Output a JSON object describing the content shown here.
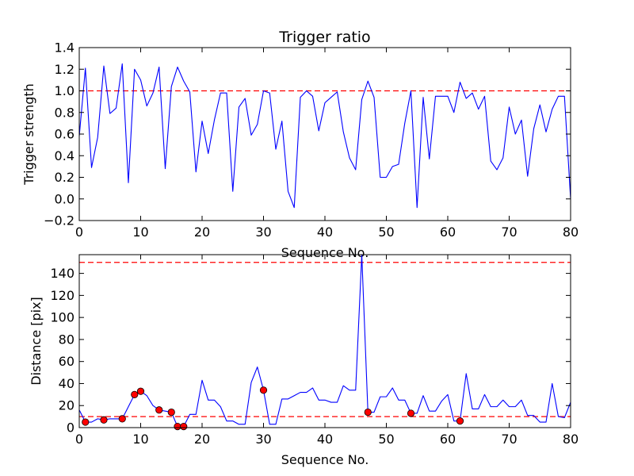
{
  "chart_data": [
    {
      "type": "line",
      "title": "Trigger ratio",
      "xlabel": "Sequence No.",
      "ylabel": "Trigger strength",
      "xlim": [
        0,
        80
      ],
      "ylim": [
        -0.2,
        1.4
      ],
      "xticks": [
        "0",
        "10",
        "20",
        "30",
        "40",
        "50",
        "60",
        "70",
        "80"
      ],
      "yticks": [
        "−0.2",
        "0.0",
        "0.2",
        "0.4",
        "0.6",
        "0.8",
        "1.0",
        "1.2",
        "1.4"
      ],
      "grid": false,
      "colors": {
        "line": "#0000ff",
        "threshold": "#ff0000"
      },
      "threshold_lines": [
        1.0
      ],
      "series": [
        {
          "x": [
            0,
            1,
            2,
            3,
            4,
            5,
            6,
            7,
            8,
            9,
            10,
            11,
            12,
            13,
            14,
            15,
            16,
            17,
            18,
            19,
            20,
            21,
            22,
            23,
            24,
            25,
            26,
            27,
            28,
            29,
            30,
            31,
            32,
            33,
            34,
            35,
            36,
            37,
            38,
            39,
            40,
            41,
            42,
            43,
            44,
            45,
            46,
            47,
            48,
            49,
            50,
            51,
            52,
            53,
            54,
            55,
            56,
            57,
            58,
            59,
            60,
            61,
            62,
            63,
            64,
            65,
            66,
            67,
            68,
            69,
            70,
            71,
            72,
            73,
            74,
            75,
            76,
            77,
            78,
            79,
            80
          ],
          "values": [
            0.58,
            1.21,
            0.29,
            0.57,
            1.23,
            0.79,
            0.84,
            1.25,
            0.15,
            1.2,
            1.1,
            0.86,
            0.98,
            1.22,
            0.28,
            1.04,
            1.22,
            1.09,
            0.99,
            0.25,
            0.72,
            0.42,
            0.73,
            0.98,
            0.98,
            0.07,
            0.85,
            0.93,
            0.59,
            0.69,
            1.0,
            0.98,
            0.46,
            0.72,
            0.07,
            -0.08,
            0.94,
            1.0,
            0.95,
            0.63,
            0.89,
            0.94,
            0.99,
            0.62,
            0.38,
            0.27,
            0.92,
            1.09,
            0.94,
            0.2,
            0.2,
            0.3,
            0.32,
            0.7,
            1.0,
            -0.08,
            0.94,
            0.37,
            0.95,
            0.95,
            0.95,
            0.8,
            1.08,
            0.93,
            0.98,
            0.83,
            0.95,
            0.35,
            0.27,
            0.38,
            0.85,
            0.6,
            0.73,
            0.21,
            0.65,
            0.87,
            0.62,
            0.83,
            0.95,
            0.95,
            0.0
          ]
        }
      ]
    },
    {
      "type": "line",
      "title": "",
      "xlabel": "Sequence No.",
      "ylabel": "Distance [pix]",
      "xlim": [
        0,
        80
      ],
      "ylim": [
        0,
        157
      ],
      "xticks": [
        "0",
        "10",
        "20",
        "30",
        "40",
        "50",
        "60",
        "70",
        "80"
      ],
      "yticks": [
        "0",
        "20",
        "40",
        "60",
        "80",
        "100",
        "120",
        "140"
      ],
      "grid": false,
      "colors": {
        "line": "#0000ff",
        "threshold": "#ff0000",
        "marker": "#ff0000"
      },
      "threshold_lines": [
        10,
        150
      ],
      "series": [
        {
          "x": [
            0,
            1,
            2,
            3,
            4,
            5,
            6,
            7,
            8,
            9,
            10,
            11,
            12,
            13,
            14,
            15,
            16,
            17,
            18,
            19,
            20,
            21,
            22,
            23,
            24,
            25,
            26,
            27,
            28,
            29,
            30,
            31,
            32,
            33,
            34,
            35,
            36,
            37,
            38,
            39,
            40,
            41,
            42,
            43,
            44,
            45,
            46,
            47,
            48,
            49,
            50,
            51,
            52,
            53,
            54,
            55,
            56,
            57,
            58,
            59,
            60,
            61,
            62,
            63,
            64,
            65,
            66,
            67,
            68,
            69,
            70,
            71,
            72,
            73,
            74,
            75,
            76,
            77,
            78,
            79,
            80
          ],
          "values": [
            16,
            5,
            5,
            8,
            7,
            8,
            8,
            8,
            19,
            30,
            33,
            29,
            20,
            16,
            15,
            14,
            1,
            1,
            12,
            12,
            43,
            25,
            25,
            19,
            6,
            6,
            3,
            3,
            41,
            55,
            34,
            3,
            3,
            26,
            26,
            29,
            32,
            32,
            36,
            25,
            25,
            23,
            23,
            38,
            34,
            34,
            157,
            14,
            14,
            28,
            28,
            36,
            25,
            25,
            13,
            13,
            29,
            15,
            15,
            24,
            30,
            6,
            6,
            49,
            17,
            17,
            30,
            19,
            19,
            25,
            19,
            19,
            25,
            11,
            11,
            5,
            5,
            40,
            10,
            9,
            23
          ]
        },
        {
          "name": "",
          "marker": "circle",
          "x": [
            1,
            4,
            7,
            9,
            10,
            13,
            15,
            16,
            17,
            30,
            47,
            54,
            62
          ],
          "values": [
            5,
            7,
            8,
            30,
            33,
            16,
            14,
            1,
            1,
            34,
            14,
            13,
            6
          ]
        }
      ]
    }
  ]
}
